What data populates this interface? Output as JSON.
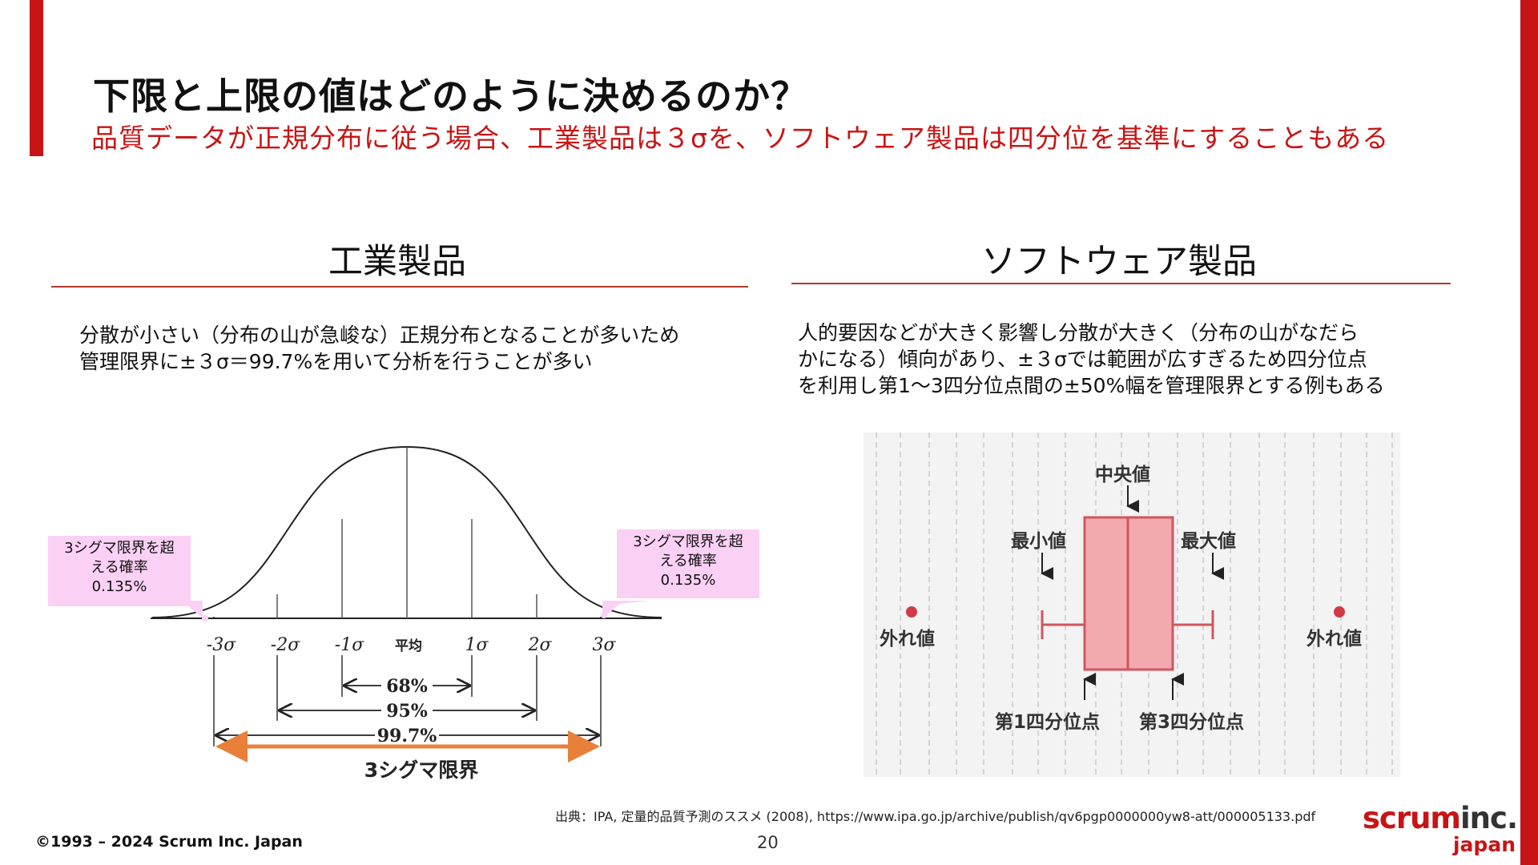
{
  "slide": {
    "title": "下限と上限の値はどのように決めるのか？",
    "subtitle": "品質データが正規分布に従う場合、工業製品は３σを、ソフトウェア製品は四分位を基準にすることもある",
    "accent_color": "#c81414",
    "page_number": "20",
    "copyright": "©1993 – 2024 Scrum Inc. Japan",
    "source": "出典：IPA, 定量的品質予測のススメ (2008), https://www.ipa.go.jp/archive/publish/qv6pgp0000000yw8-att/000005133.pdf",
    "logo": {
      "part1": "scrum",
      "part2": "inc.",
      "sub": "japan"
    }
  },
  "left": {
    "heading": "工業製品",
    "desc_line1": "分散が小さい（分布の山が急峻な）正規分布となることが多いため",
    "desc_line2": "管理限界に±３σ＝99.7%を用いて分析を行うことが多い",
    "chart": {
      "ticks": [
        "-3σ",
        "-2σ",
        "-1σ",
        "平均",
        "1σ",
        "2σ",
        "3σ"
      ],
      "range_68": "68%",
      "range_95": "95%",
      "range_997": "99.7%",
      "limit_label": "3シグマ限界",
      "callout_left": {
        "line1": "3シグマ限界を超",
        "line2": "える確率",
        "line3": "0.135%"
      },
      "callout_right": {
        "line1": "3シグマ限界を超",
        "line2": "える確率",
        "line3": "0.135%"
      }
    }
  },
  "right": {
    "heading": "ソフトウェア製品",
    "desc_line1": "人的要因などが大きく影響し分散が大きく（分布の山がなだら",
    "desc_line2": "かになる）傾向があり、±３σでは範囲が広すぎるため四分位点",
    "desc_line3": "を利用し第1～3四分位点間の±50%幅を管理限界とする例もある",
    "boxplot": {
      "median": "中央値",
      "min": "最小値",
      "max": "最大値",
      "outlier_left": "外れ値",
      "outlier_right": "外れ値",
      "q1": "第1四分位点",
      "q3": "第3四分位点"
    }
  }
}
